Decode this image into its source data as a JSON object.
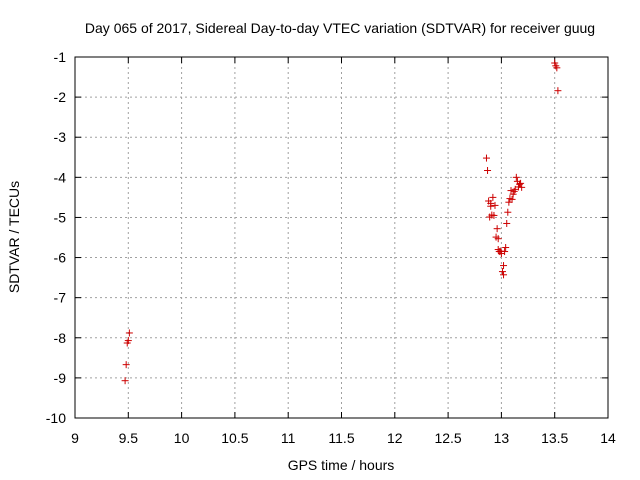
{
  "chart_data": {
    "type": "scatter",
    "title": "Day 065 of 2017, Sidereal Day-to-day VTEC variation (SDTVAR) for receiver guug",
    "xlabel": "GPS time / hours",
    "ylabel": "SDTVAR / TECUs",
    "xlim": [
      9,
      14
    ],
    "ylim": [
      -10,
      -1
    ],
    "xticks": [
      9,
      9.5,
      10,
      10.5,
      11,
      11.5,
      12,
      12.5,
      13,
      13.5,
      14
    ],
    "xtick_labels": [
      "9",
      "9.5",
      "10",
      "10.5",
      "11",
      "11.5",
      "12",
      "12.5",
      "13",
      "13.5",
      "14"
    ],
    "yticks": [
      -10,
      -9,
      -8,
      -7,
      -6,
      -5,
      -4,
      -3,
      -2,
      -1
    ],
    "ytick_labels": [
      "-10",
      "-9",
      "-8",
      "-7",
      "-6",
      "-5",
      "-4",
      "-3",
      "-2",
      "-1"
    ],
    "grid": true,
    "marker": "+",
    "color": "#cc0000",
    "series": [
      {
        "name": "SDTVAR",
        "x": [
          9.47,
          9.48,
          9.49,
          9.5,
          9.51,
          12.86,
          12.87,
          12.88,
          12.89,
          12.9,
          12.9,
          12.91,
          12.92,
          12.93,
          12.94,
          12.95,
          12.96,
          12.97,
          12.97,
          12.98,
          12.99,
          13.0,
          13.01,
          13.02,
          13.02,
          13.03,
          13.04,
          13.05,
          13.06,
          13.07,
          13.08,
          13.09,
          13.1,
          13.11,
          13.12,
          13.13,
          13.14,
          13.15,
          13.16,
          13.17,
          13.18,
          13.19,
          13.5,
          13.51,
          13.52,
          13.53
        ],
        "y": [
          -9.07,
          -8.67,
          -8.13,
          -8.07,
          -7.88,
          -3.52,
          -3.83,
          -4.59,
          -4.99,
          -4.65,
          -4.72,
          -4.94,
          -4.5,
          -4.95,
          -4.7,
          -5.49,
          -5.28,
          -5.53,
          -5.8,
          -5.85,
          -5.84,
          -5.9,
          -6.35,
          -6.43,
          -6.2,
          -5.85,
          -5.75,
          -5.15,
          -4.87,
          -4.62,
          -4.53,
          -4.33,
          -4.55,
          -4.42,
          -4.35,
          -4.3,
          -4.0,
          -4.1,
          -4.24,
          -4.17,
          -4.15,
          -4.25,
          -1.15,
          -1.22,
          -1.27,
          -1.84
        ]
      }
    ]
  }
}
